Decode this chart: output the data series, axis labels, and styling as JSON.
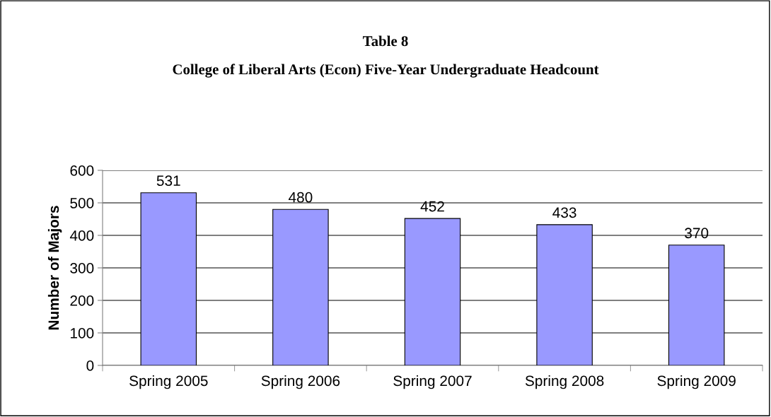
{
  "chart_data": {
    "type": "bar",
    "title": "Table 8",
    "subtitle": "College of Liberal Arts (Econ) Five-Year Undergraduate Headcount",
    "ylabel": "Number of Majors",
    "categories": [
      "Spring 2005",
      "Spring 2006",
      "Spring 2007",
      "Spring 2008",
      "Spring 2009"
    ],
    "values": [
      531,
      480,
      452,
      433,
      370
    ],
    "color": "#9999ff",
    "ylim": [
      0,
      600
    ],
    "yticks": [
      0,
      100,
      200,
      300,
      400,
      500,
      600
    ],
    "grid": "y",
    "data_labels": true
  }
}
